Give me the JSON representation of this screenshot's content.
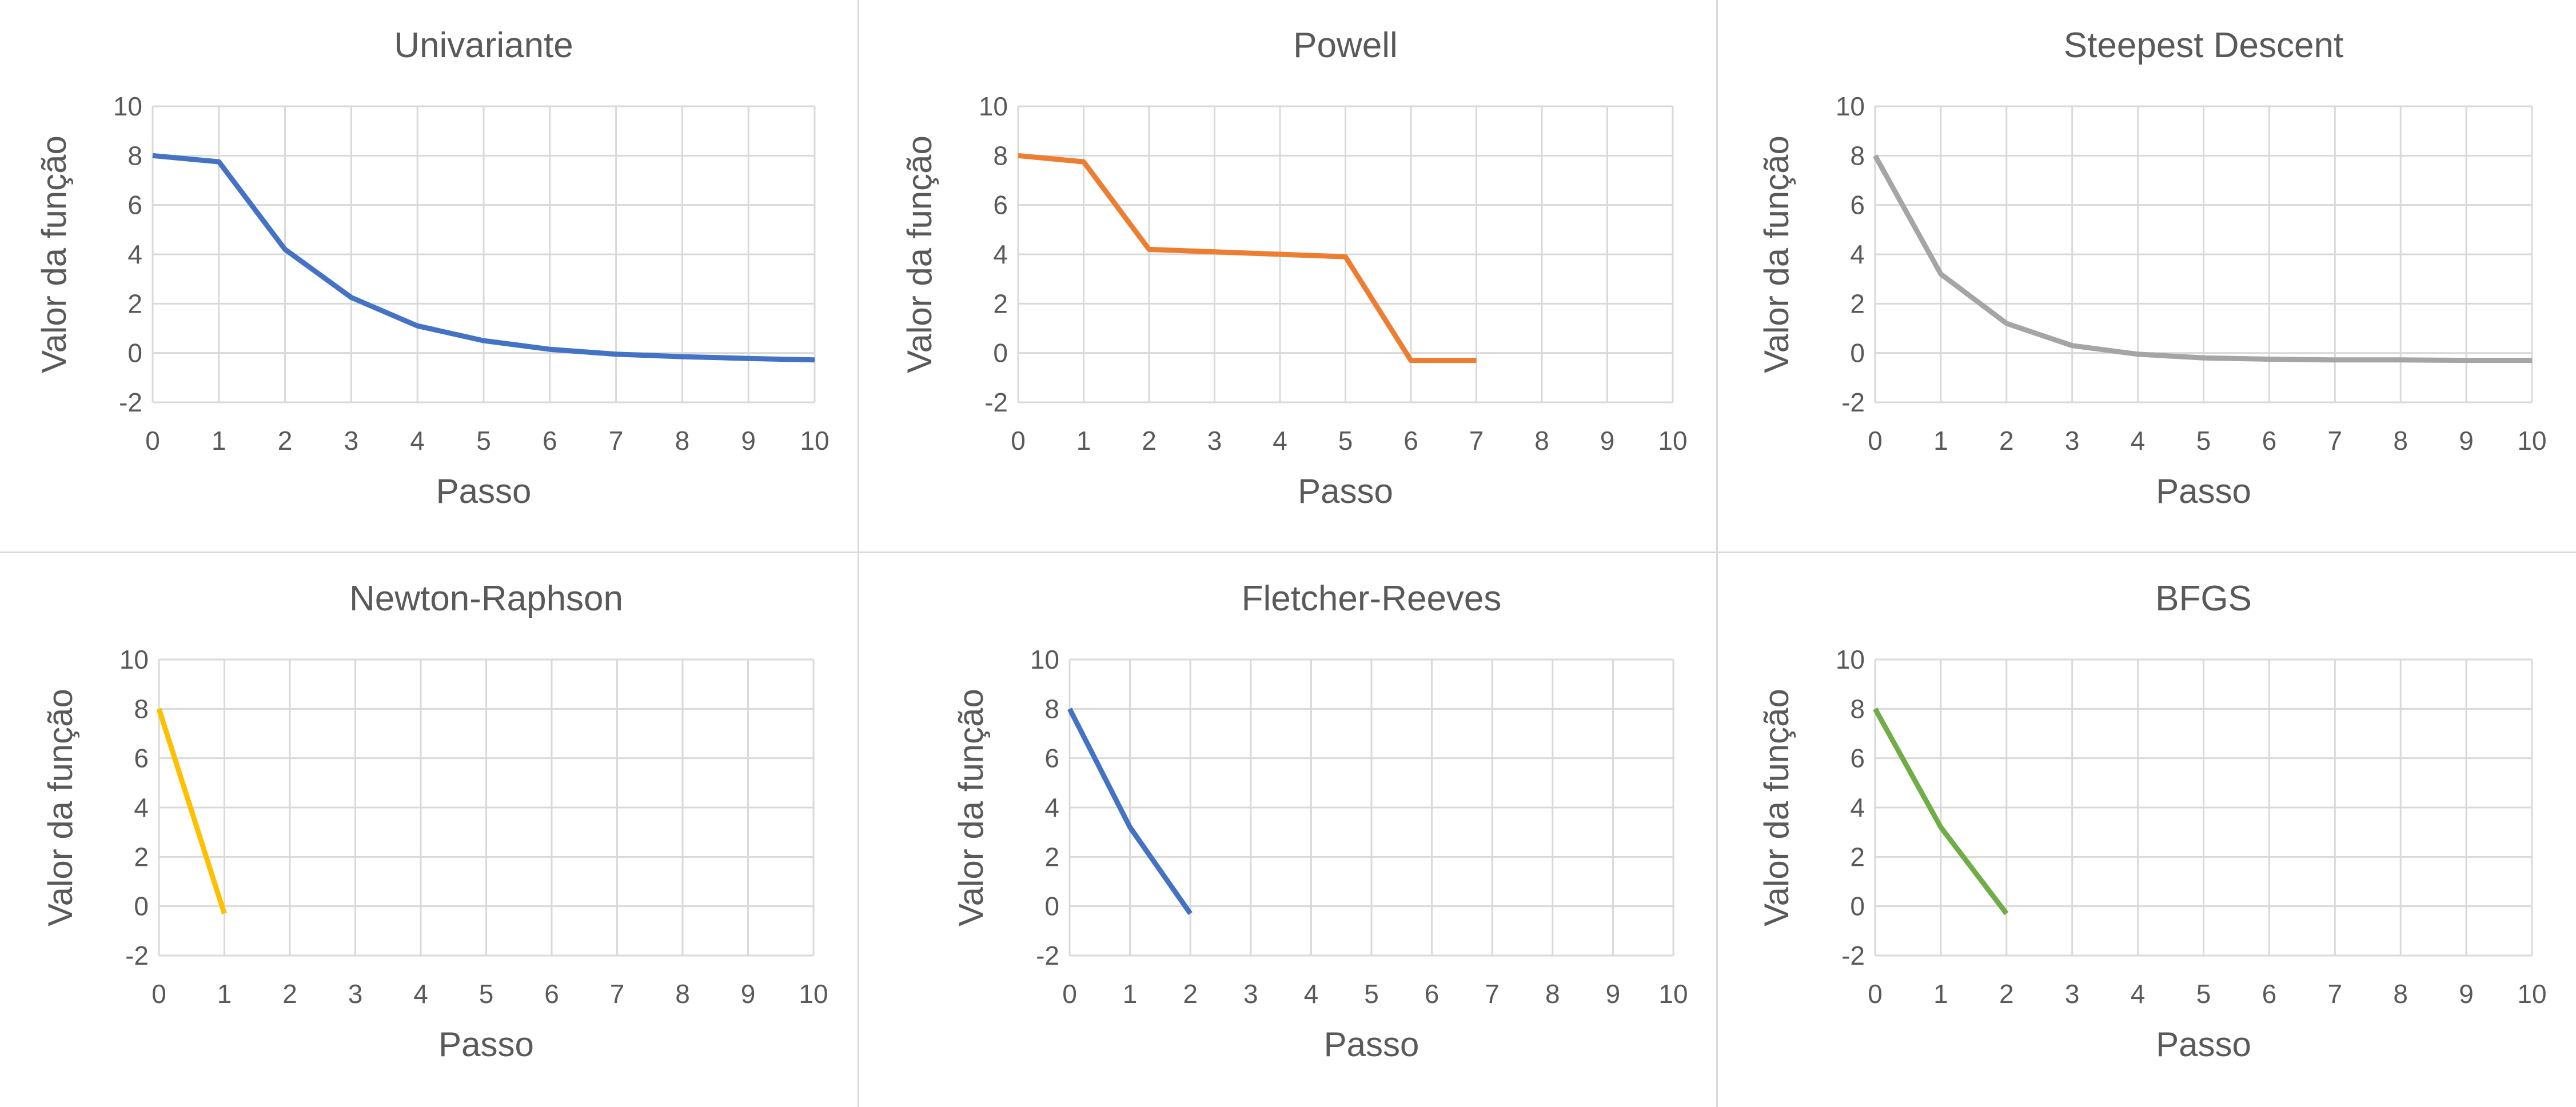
{
  "chart_data": [
    {
      "type": "line",
      "title": "Univariante",
      "xlabel": "Passo",
      "ylabel": "Valor da função",
      "xlim": [
        0,
        10
      ],
      "ylim": [
        -2,
        10
      ],
      "xticks": [
        "0",
        "1",
        "2",
        "3",
        "4",
        "5",
        "6",
        "7",
        "8",
        "9",
        "10"
      ],
      "yticks": [
        "-2",
        "0",
        "2",
        "4",
        "6",
        "8",
        "10"
      ],
      "grid": true,
      "color": "#4472C4",
      "x": [
        0,
        1,
        2,
        3,
        4,
        5,
        6,
        7,
        8,
        9,
        10
      ],
      "y": [
        8,
        7.75,
        4.2,
        2.25,
        1.1,
        0.5,
        0.15,
        -0.05,
        -0.15,
        -0.22,
        -0.28
      ]
    },
    {
      "type": "line",
      "title": "Powell",
      "xlabel": "Passo",
      "ylabel": "Valor da função",
      "xlim": [
        0,
        10
      ],
      "ylim": [
        -2,
        10
      ],
      "xticks": [
        "0",
        "1",
        "2",
        "3",
        "4",
        "5",
        "6",
        "7",
        "8",
        "9",
        "10"
      ],
      "yticks": [
        "-2",
        "0",
        "2",
        "4",
        "6",
        "8",
        "10"
      ],
      "grid": true,
      "color": "#ED7D31",
      "x": [
        0,
        1,
        2,
        5,
        6,
        7
      ],
      "y": [
        8,
        7.75,
        4.2,
        3.9,
        -0.3,
        -0.3
      ]
    },
    {
      "type": "line",
      "title": "Steepest Descent",
      "xlabel": "Passo",
      "ylabel": "Valor da função",
      "xlim": [
        0,
        10
      ],
      "ylim": [
        -2,
        10
      ],
      "xticks": [
        "0",
        "1",
        "2",
        "3",
        "4",
        "5",
        "6",
        "7",
        "8",
        "9",
        "10"
      ],
      "yticks": [
        "-2",
        "0",
        "2",
        "4",
        "6",
        "8",
        "10"
      ],
      "grid": true,
      "color": "#A5A5A5",
      "x": [
        0,
        1,
        2,
        3,
        4,
        5,
        6,
        7,
        8,
        9,
        10
      ],
      "y": [
        8,
        3.2,
        1.2,
        0.3,
        -0.05,
        -0.2,
        -0.25,
        -0.28,
        -0.28,
        -0.3,
        -0.3
      ]
    },
    {
      "type": "line",
      "title": "Newton-Raphson",
      "xlabel": "Passo",
      "ylabel": "Valor da função",
      "xlim": [
        0,
        10
      ],
      "ylim": [
        -2,
        10
      ],
      "xticks": [
        "0",
        "1",
        "2",
        "3",
        "4",
        "5",
        "6",
        "7",
        "8",
        "9",
        "10"
      ],
      "yticks": [
        "-2",
        "0",
        "2",
        "4",
        "6",
        "8",
        "10"
      ],
      "grid": true,
      "color": "#FFC000",
      "x": [
        0,
        1
      ],
      "y": [
        8,
        -0.3
      ]
    },
    {
      "type": "line",
      "title": "Fletcher-Reeves",
      "xlabel": "Passo",
      "ylabel": "Valor da função",
      "xlim": [
        0,
        10
      ],
      "ylim": [
        -2,
        10
      ],
      "xticks": [
        "0",
        "1",
        "2",
        "3",
        "4",
        "5",
        "6",
        "7",
        "8",
        "9",
        "10"
      ],
      "yticks": [
        "-2",
        "0",
        "2",
        "4",
        "6",
        "8",
        "10"
      ],
      "grid": true,
      "color": "#4472C4",
      "x": [
        0,
        1,
        2
      ],
      "y": [
        8,
        3.2,
        -0.3
      ]
    },
    {
      "type": "line",
      "title": "BFGS",
      "xlabel": "Passo",
      "ylabel": "Valor da função",
      "xlim": [
        0,
        10
      ],
      "ylim": [
        -2,
        10
      ],
      "xticks": [
        "0",
        "1",
        "2",
        "3",
        "4",
        "5",
        "6",
        "7",
        "8",
        "9",
        "10"
      ],
      "yticks": [
        "-2",
        "0",
        "2",
        "4",
        "6",
        "8",
        "10"
      ],
      "grid": true,
      "color": "#70AD47",
      "x": [
        0,
        1,
        2
      ],
      "y": [
        8,
        3.2,
        -0.3
      ]
    }
  ]
}
